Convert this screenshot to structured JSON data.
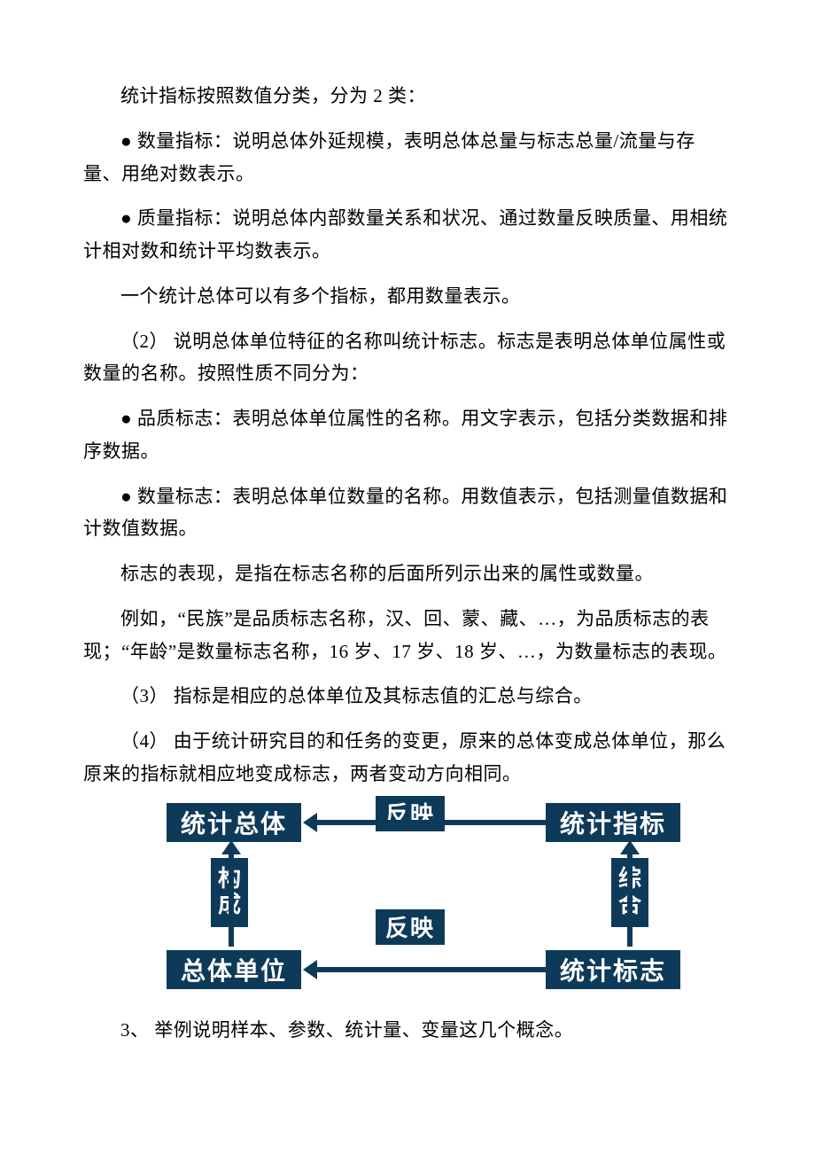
{
  "paragraphs": {
    "p1": "统计指标按照数值分类，分为 2 类：",
    "p2": "● 数量指标：说明总体外延规模，表明总体总量与标志总量/流量与存量、用绝对数表示。",
    "p3": "● 质量指标：说明总体内部数量关系和状况、通过数量反映质量、用相统计相对数和统计平均数表示。",
    "p4": "一个统计总体可以有多个指标，都用数量表示。",
    "p5": "（2） 说明总体单位特征的名称叫统计标志。标志是表明总体单位属性或数量的名称。按照性质不同分为：",
    "p6": "● 品质标志：表明总体单位属性的名称。用文字表示，包括分类数据和排序数据。",
    "p7": "● 数量标志：表明总体单位数量的名称。用数值表示，包括测量值数据和计数值数据。",
    "p8": "标志的表现，是指在标志名称的后面所列示出来的属性或数量。",
    "p9": "例如，“民族”是品质标志名称，汉、回、蒙、藏、…，为品质标志的表现；“年龄”是数量标志名称，16 岁、17 岁、18 岁、…，为数量标志的表现。",
    "p10": "（3） 指标是相应的总体单位及其标志值的汇总与综合。",
    "p11": "（4） 由于统计研究目的和任务的变更，原来的总体变成总体单位，那么原来的指标就相应地变成标志，两者变动方向相同。",
    "p12": "3、 举例说明样本、参数、统计量、变量这几个概念。"
  },
  "diagram": {
    "nodes": {
      "tl": "统计总体",
      "tr": "统计指标",
      "bl": "总体单位",
      "br": "统计标志"
    },
    "edge_labels": {
      "top": "反映",
      "bottom": "反映",
      "left_c1": "构",
      "left_c2": "成",
      "right_c1": "综",
      "right_c2": "合"
    },
    "colors": {
      "box_bg": "#0e3a5a",
      "box_text": "#ffffff",
      "arrow": "#0e3a5a"
    }
  },
  "watermark": ""
}
